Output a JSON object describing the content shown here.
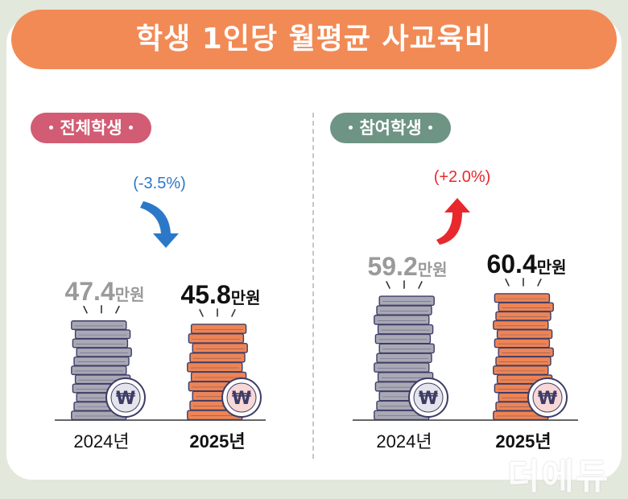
{
  "title": "학생 1인당 월평균 사교육비",
  "watermark": "더에듀",
  "colors": {
    "banner": "#f28a55",
    "pill_all": "#d25c74",
    "pill_participating": "#6e9484",
    "coin_2024": "#a9a9b5",
    "coin_2025": "#ee8454",
    "coin_outline": "#3c3c66",
    "badge_2024": "#e4e4ec",
    "badge_2025": "#f8d7d7",
    "down_arrow": "#2c78c8",
    "up_arrow": "#e8282c",
    "value_2024": "#9a9a9a",
    "value_2025": "#111111",
    "change_down": "#2c78c8",
    "change_up": "#e8282c"
  },
  "currency_symbol": "₩",
  "chart_data": [
    {
      "type": "bar",
      "group": "전체학생",
      "categories": [
        "2024년",
        "2025년"
      ],
      "values": [
        47.4,
        45.8
      ],
      "value_labels": [
        "47.4",
        "45.8"
      ],
      "unit": "만원",
      "change": "(-3.5%)",
      "direction": "down"
    },
    {
      "type": "bar",
      "group": "참여학생",
      "categories": [
        "2024년",
        "2025년"
      ],
      "values": [
        59.2,
        60.4
      ],
      "value_labels": [
        "59.2",
        "60.4"
      ],
      "unit": "만원",
      "change": "(+2.0%)",
      "direction": "up"
    }
  ]
}
